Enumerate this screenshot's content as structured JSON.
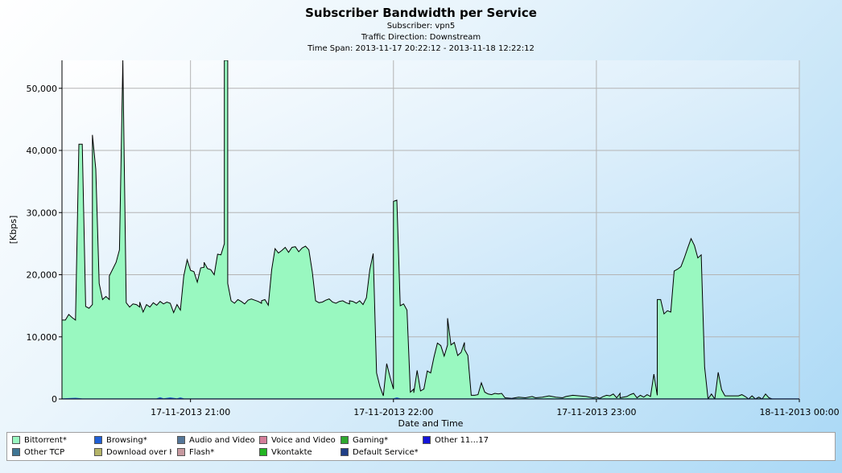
{
  "chart_data": {
    "type": "area",
    "title": "Subscriber Bandwidth per Service",
    "subtitles": [
      "Subscriber: vpn5",
      "Traffic Direction: Downstream",
      "Time Span: 2013-11-17 20:22:12 - 2013-11-18 12:22:12"
    ],
    "xlabel": "Date and Time",
    "ylabel": "[Kbps]",
    "xlim": [
      "2013-11-17 20:22",
      "2013-11-18 00:00"
    ],
    "ylim": [
      0,
      54500
    ],
    "yticks": [
      0,
      10000,
      20000,
      30000,
      40000,
      50000
    ],
    "ytick_labels": [
      "0",
      "10,000",
      "20,000",
      "30,000",
      "40,000",
      "50,000"
    ],
    "xticks": [
      "2013-11-17 21:00",
      "2013-11-17 22:00",
      "2013-11-17 23:00",
      "2013-11-18 00:00"
    ],
    "xtick_labels": [
      "17-11-2013 21:00",
      "17-11-2013 22:00",
      "17-11-2013 23:00",
      "18-11-2013 00:00"
    ],
    "grid": true,
    "legend_position": "bottom",
    "series": [
      {
        "name": "Bittorrent*",
        "color": "#99f8c0",
        "points": [
          [
            "2013-11-17 20:22",
            15000
          ],
          [
            "2013-11-17 20:22",
            12700
          ],
          [
            "2013-11-17 20:23",
            12700
          ],
          [
            "2013-11-17 20:24",
            13600
          ],
          [
            "2013-11-17 20:25",
            13100
          ],
          [
            "2013-11-17 20:26",
            12700
          ],
          [
            "2013-11-17 20:27",
            41000
          ],
          [
            "2013-11-17 20:28",
            41000
          ],
          [
            "2013-11-17 20:29",
            14900
          ],
          [
            "2013-11-17 20:30",
            14600
          ],
          [
            "2013-11-17 20:31",
            15200
          ],
          [
            "2013-11-17 20:31",
            42500
          ],
          [
            "2013-11-17 20:32",
            37000
          ],
          [
            "2013-11-17 20:33",
            18600
          ],
          [
            "2013-11-17 20:34",
            16000
          ],
          [
            "2013-11-17 20:35",
            16500
          ],
          [
            "2013-11-17 20:36",
            16000
          ],
          [
            "2013-11-17 20:36",
            19800
          ],
          [
            "2013-11-17 20:38",
            22000
          ],
          [
            "2013-11-17 20:39",
            24000
          ],
          [
            "2013-11-17 20:40",
            54500
          ],
          [
            "2013-11-17 20:40",
            54500
          ],
          [
            "2013-11-17 20:41",
            15500
          ],
          [
            "2013-11-17 20:42",
            14800
          ],
          [
            "2013-11-17 20:43",
            15300
          ],
          [
            "2013-11-17 20:44",
            15200
          ],
          [
            "2013-11-17 20:45",
            14800
          ],
          [
            "2013-11-17 20:45",
            15600
          ],
          [
            "2013-11-17 20:46",
            14000
          ],
          [
            "2013-11-17 20:47",
            15200
          ],
          [
            "2013-11-17 20:48",
            14800
          ],
          [
            "2013-11-17 20:49",
            15500
          ],
          [
            "2013-11-17 20:50",
            15100
          ],
          [
            "2013-11-17 20:51",
            15700
          ],
          [
            "2013-11-17 20:52",
            15300
          ],
          [
            "2013-11-17 20:53",
            15600
          ],
          [
            "2013-11-17 20:54",
            15400
          ],
          [
            "2013-11-17 20:55",
            13900
          ],
          [
            "2013-11-17 20:56",
            15200
          ],
          [
            "2013-11-17 20:57",
            14300
          ],
          [
            "2013-11-17 20:58",
            19800
          ],
          [
            "2013-11-17 20:59",
            22400
          ],
          [
            "2013-11-17 21:00",
            20700
          ],
          [
            "2013-11-17 21:01",
            20500
          ],
          [
            "2013-11-17 21:02",
            18800
          ],
          [
            "2013-11-17 21:03",
            21100
          ],
          [
            "2013-11-17 21:04",
            21200
          ],
          [
            "2013-11-17 21:04",
            22000
          ],
          [
            "2013-11-17 21:05",
            21000
          ],
          [
            "2013-11-17 21:06",
            20800
          ],
          [
            "2013-11-17 21:07",
            20000
          ],
          [
            "2013-11-17 21:08",
            23300
          ],
          [
            "2013-11-17 21:09",
            23200
          ],
          [
            "2013-11-17 21:10",
            25000
          ],
          [
            "2013-11-17 21:10",
            54500
          ],
          [
            "2013-11-17 21:11",
            54500
          ],
          [
            "2013-11-17 21:11",
            18600
          ],
          [
            "2013-11-17 21:12",
            15800
          ],
          [
            "2013-11-17 21:13",
            15400
          ],
          [
            "2013-11-17 21:14",
            16000
          ],
          [
            "2013-11-17 21:15",
            15700
          ],
          [
            "2013-11-17 21:16",
            15300
          ],
          [
            "2013-11-17 21:17",
            15900
          ],
          [
            "2013-11-17 21:18",
            16100
          ],
          [
            "2013-11-17 21:19",
            15900
          ],
          [
            "2013-11-17 21:20",
            15700
          ],
          [
            "2013-11-17 21:21",
            15400
          ],
          [
            "2013-11-17 21:21",
            15800
          ],
          [
            "2013-11-17 21:22",
            16000
          ],
          [
            "2013-11-17 21:23",
            15100
          ],
          [
            "2013-11-17 21:24",
            20800
          ],
          [
            "2013-11-17 21:25",
            24200
          ],
          [
            "2013-11-17 21:26",
            23500
          ],
          [
            "2013-11-17 21:27",
            23900
          ],
          [
            "2013-11-17 21:28",
            24400
          ],
          [
            "2013-11-17 21:29",
            23600
          ],
          [
            "2013-11-17 21:30",
            24400
          ],
          [
            "2013-11-17 21:31",
            24500
          ],
          [
            "2013-11-17 21:32",
            23700
          ],
          [
            "2013-11-17 21:33",
            24300
          ],
          [
            "2013-11-17 21:34",
            24600
          ],
          [
            "2013-11-17 21:35",
            24000
          ],
          [
            "2013-11-17 21:36",
            20500
          ],
          [
            "2013-11-17 21:37",
            15800
          ],
          [
            "2013-11-17 21:37",
            15800
          ],
          [
            "2013-11-17 21:38",
            15500
          ],
          [
            "2013-11-17 21:39",
            15600
          ],
          [
            "2013-11-17 21:40",
            15900
          ],
          [
            "2013-11-17 21:41",
            16100
          ],
          [
            "2013-11-17 21:42",
            15600
          ],
          [
            "2013-11-17 21:43",
            15400
          ],
          [
            "2013-11-17 21:44",
            15700
          ],
          [
            "2013-11-17 21:45",
            15800
          ],
          [
            "2013-11-17 21:46",
            15500
          ],
          [
            "2013-11-17 21:47",
            15300
          ],
          [
            "2013-11-17 21:47",
            15800
          ],
          [
            "2013-11-17 21:48",
            15700
          ],
          [
            "2013-11-17 21:49",
            15400
          ],
          [
            "2013-11-17 21:50",
            15800
          ],
          [
            "2013-11-17 21:51",
            15200
          ],
          [
            "2013-11-17 21:52",
            16300
          ],
          [
            "2013-11-17 21:53",
            20800
          ],
          [
            "2013-11-17 21:54",
            23400
          ],
          [
            "2013-11-17 21:55",
            4200
          ],
          [
            "2013-11-17 21:56",
            2000
          ],
          [
            "2013-11-17 21:57",
            500
          ],
          [
            "2013-11-17 21:58",
            5700
          ],
          [
            "2013-11-17 21:59",
            3500
          ],
          [
            "2013-11-17 22:00",
            1600
          ],
          [
            "2013-11-17 22:00",
            31800
          ],
          [
            "2013-11-17 22:01",
            32000
          ],
          [
            "2013-11-17 22:02",
            15000
          ],
          [
            "2013-11-17 22:03",
            15300
          ],
          [
            "2013-11-17 22:04",
            14300
          ],
          [
            "2013-11-17 22:05",
            1100
          ],
          [
            "2013-11-17 22:06",
            1600
          ],
          [
            "2013-11-17 22:06",
            1000
          ],
          [
            "2013-11-17 22:07",
            4600
          ],
          [
            "2013-11-17 22:08",
            1300
          ],
          [
            "2013-11-17 22:09",
            1600
          ],
          [
            "2013-11-17 22:10",
            4500
          ],
          [
            "2013-11-17 22:11",
            4200
          ],
          [
            "2013-11-17 22:12",
            6800
          ],
          [
            "2013-11-17 22:13",
            9000
          ],
          [
            "2013-11-17 22:14",
            8600
          ],
          [
            "2013-11-17 22:15",
            6900
          ],
          [
            "2013-11-17 22:16",
            8700
          ],
          [
            "2013-11-17 22:16",
            13000
          ],
          [
            "2013-11-17 22:17",
            8700
          ],
          [
            "2013-11-17 22:18",
            9100
          ],
          [
            "2013-11-17 22:19",
            7000
          ],
          [
            "2013-11-17 22:20",
            7500
          ],
          [
            "2013-11-17 22:21",
            9100
          ],
          [
            "2013-11-17 22:21",
            8000
          ],
          [
            "2013-11-17 22:22",
            7000
          ],
          [
            "2013-11-17 22:23",
            600
          ],
          [
            "2013-11-17 22:24",
            600
          ],
          [
            "2013-11-17 22:25",
            700
          ],
          [
            "2013-11-17 22:26",
            2600
          ],
          [
            "2013-11-17 22:27",
            1100
          ],
          [
            "2013-11-17 22:28",
            800
          ],
          [
            "2013-11-17 22:29",
            700
          ],
          [
            "2013-11-17 22:30",
            900
          ],
          [
            "2013-11-17 22:31",
            800
          ],
          [
            "2013-11-17 22:32",
            900
          ],
          [
            "2013-11-17 22:33",
            200
          ],
          [
            "2013-11-17 22:35",
            100
          ],
          [
            "2013-11-17 22:37",
            300
          ],
          [
            "2013-11-17 22:39",
            200
          ],
          [
            "2013-11-17 22:41",
            400
          ],
          [
            "2013-11-17 22:42",
            200
          ],
          [
            "2013-11-17 22:44",
            300
          ],
          [
            "2013-11-17 22:46",
            500
          ],
          [
            "2013-11-17 22:48",
            300
          ],
          [
            "2013-11-17 22:50",
            200
          ],
          [
            "2013-11-17 22:51",
            400
          ],
          [
            "2013-11-17 22:53",
            600
          ],
          [
            "2013-11-17 22:55",
            500
          ],
          [
            "2013-11-17 22:57",
            400
          ],
          [
            "2013-11-17 22:59",
            200
          ],
          [
            "2013-11-17 23:00",
            300
          ],
          [
            "2013-11-17 23:01",
            100
          ],
          [
            "2013-11-17 23:02",
            400
          ],
          [
            "2013-11-17 23:03",
            600
          ],
          [
            "2013-11-17 23:04",
            500
          ],
          [
            "2013-11-17 23:05",
            800
          ],
          [
            "2013-11-17 23:06",
            200
          ],
          [
            "2013-11-17 23:07",
            900
          ],
          [
            "2013-11-17 23:07",
            200
          ],
          [
            "2013-11-17 23:09",
            400
          ],
          [
            "2013-11-17 23:10",
            700
          ],
          [
            "2013-11-17 23:11",
            900
          ],
          [
            "2013-11-17 23:12",
            200
          ],
          [
            "2013-11-17 23:13",
            600
          ],
          [
            "2013-11-17 23:14",
            300
          ],
          [
            "2013-11-17 23:15",
            700
          ],
          [
            "2013-11-17 23:16",
            400
          ],
          [
            "2013-11-17 23:17",
            4000
          ],
          [
            "2013-11-17 23:18",
            600
          ],
          [
            "2013-11-17 23:18",
            16000
          ],
          [
            "2013-11-17 23:19",
            16000
          ],
          [
            "2013-11-17 23:20",
            13700
          ],
          [
            "2013-11-17 23:21",
            14200
          ],
          [
            "2013-11-17 23:22",
            14000
          ],
          [
            "2013-11-17 23:23",
            20600
          ],
          [
            "2013-11-17 23:24",
            20900
          ],
          [
            "2013-11-17 23:25",
            21300
          ],
          [
            "2013-11-17 23:26",
            22700
          ],
          [
            "2013-11-17 23:27",
            24300
          ],
          [
            "2013-11-17 23:28",
            25800
          ],
          [
            "2013-11-17 23:29",
            24700
          ],
          [
            "2013-11-17 23:30",
            22700
          ],
          [
            "2013-11-17 23:31",
            23200
          ],
          [
            "2013-11-17 23:32",
            5200
          ],
          [
            "2013-11-17 23:33",
            0
          ],
          [
            "2013-11-17 23:34",
            800
          ],
          [
            "2013-11-17 23:35",
            0
          ],
          [
            "2013-11-17 23:36",
            4300
          ],
          [
            "2013-11-17 23:37",
            1500
          ],
          [
            "2013-11-17 23:38",
            500
          ],
          [
            "2013-11-17 23:40",
            500
          ],
          [
            "2013-11-17 23:42",
            500
          ],
          [
            "2013-11-17 23:43",
            700
          ],
          [
            "2013-11-17 23:44",
            400
          ],
          [
            "2013-11-17 23:45",
            0
          ],
          [
            "2013-11-17 23:46",
            500
          ],
          [
            "2013-11-17 23:47",
            0
          ],
          [
            "2013-11-17 23:48",
            300
          ],
          [
            "2013-11-17 23:49",
            0
          ],
          [
            "2013-11-17 23:50",
            800
          ],
          [
            "2013-11-17 23:51",
            200
          ],
          [
            "2013-11-17 23:52",
            0
          ],
          [
            "2013-11-17 23:54",
            0
          ],
          [
            "2013-11-17 23:56",
            0
          ],
          [
            "2013-11-17 23:58",
            0
          ],
          [
            "2013-11-18 00:00",
            0
          ]
        ]
      },
      {
        "name": "Browsing*",
        "color": "#1f5fd6",
        "points": [
          [
            "2013-11-17 20:22",
            0
          ],
          [
            "2013-11-17 20:26",
            100
          ],
          [
            "2013-11-17 20:28",
            0
          ],
          [
            "2013-11-17 20:50",
            0
          ],
          [
            "2013-11-17 20:51",
            200
          ],
          [
            "2013-11-17 20:52",
            0
          ],
          [
            "2013-11-17 20:54",
            150
          ],
          [
            "2013-11-17 20:56",
            0
          ],
          [
            "2013-11-17 20:57",
            150
          ],
          [
            "2013-11-17 20:58",
            0
          ],
          [
            "2013-11-17 22:00",
            0
          ],
          [
            "2013-11-17 22:01",
            150
          ],
          [
            "2013-11-17 22:02",
            0
          ],
          [
            "2013-11-18 00:00",
            0
          ]
        ]
      },
      {
        "name": "Audio and Video (",
        "color": "#557799",
        "points": []
      },
      {
        "name": "Voice and Video C",
        "color": "#d47e9a",
        "points": []
      },
      {
        "name": "Gaming*",
        "color": "#2ea82e",
        "points": []
      },
      {
        "name": "Other 11…17",
        "color": "#1515d9",
        "points": []
      },
      {
        "name": "Other TCP",
        "color": "#3f7694",
        "points": []
      },
      {
        "name": "Download over H",
        "color": "#b4b468",
        "points": []
      },
      {
        "name": "Flash*",
        "color": "#c79aa0",
        "points": []
      },
      {
        "name": "Vkontakte",
        "color": "#23b523",
        "points": []
      },
      {
        "name": "Default Service*",
        "color": "#203f86",
        "points": []
      }
    ]
  }
}
